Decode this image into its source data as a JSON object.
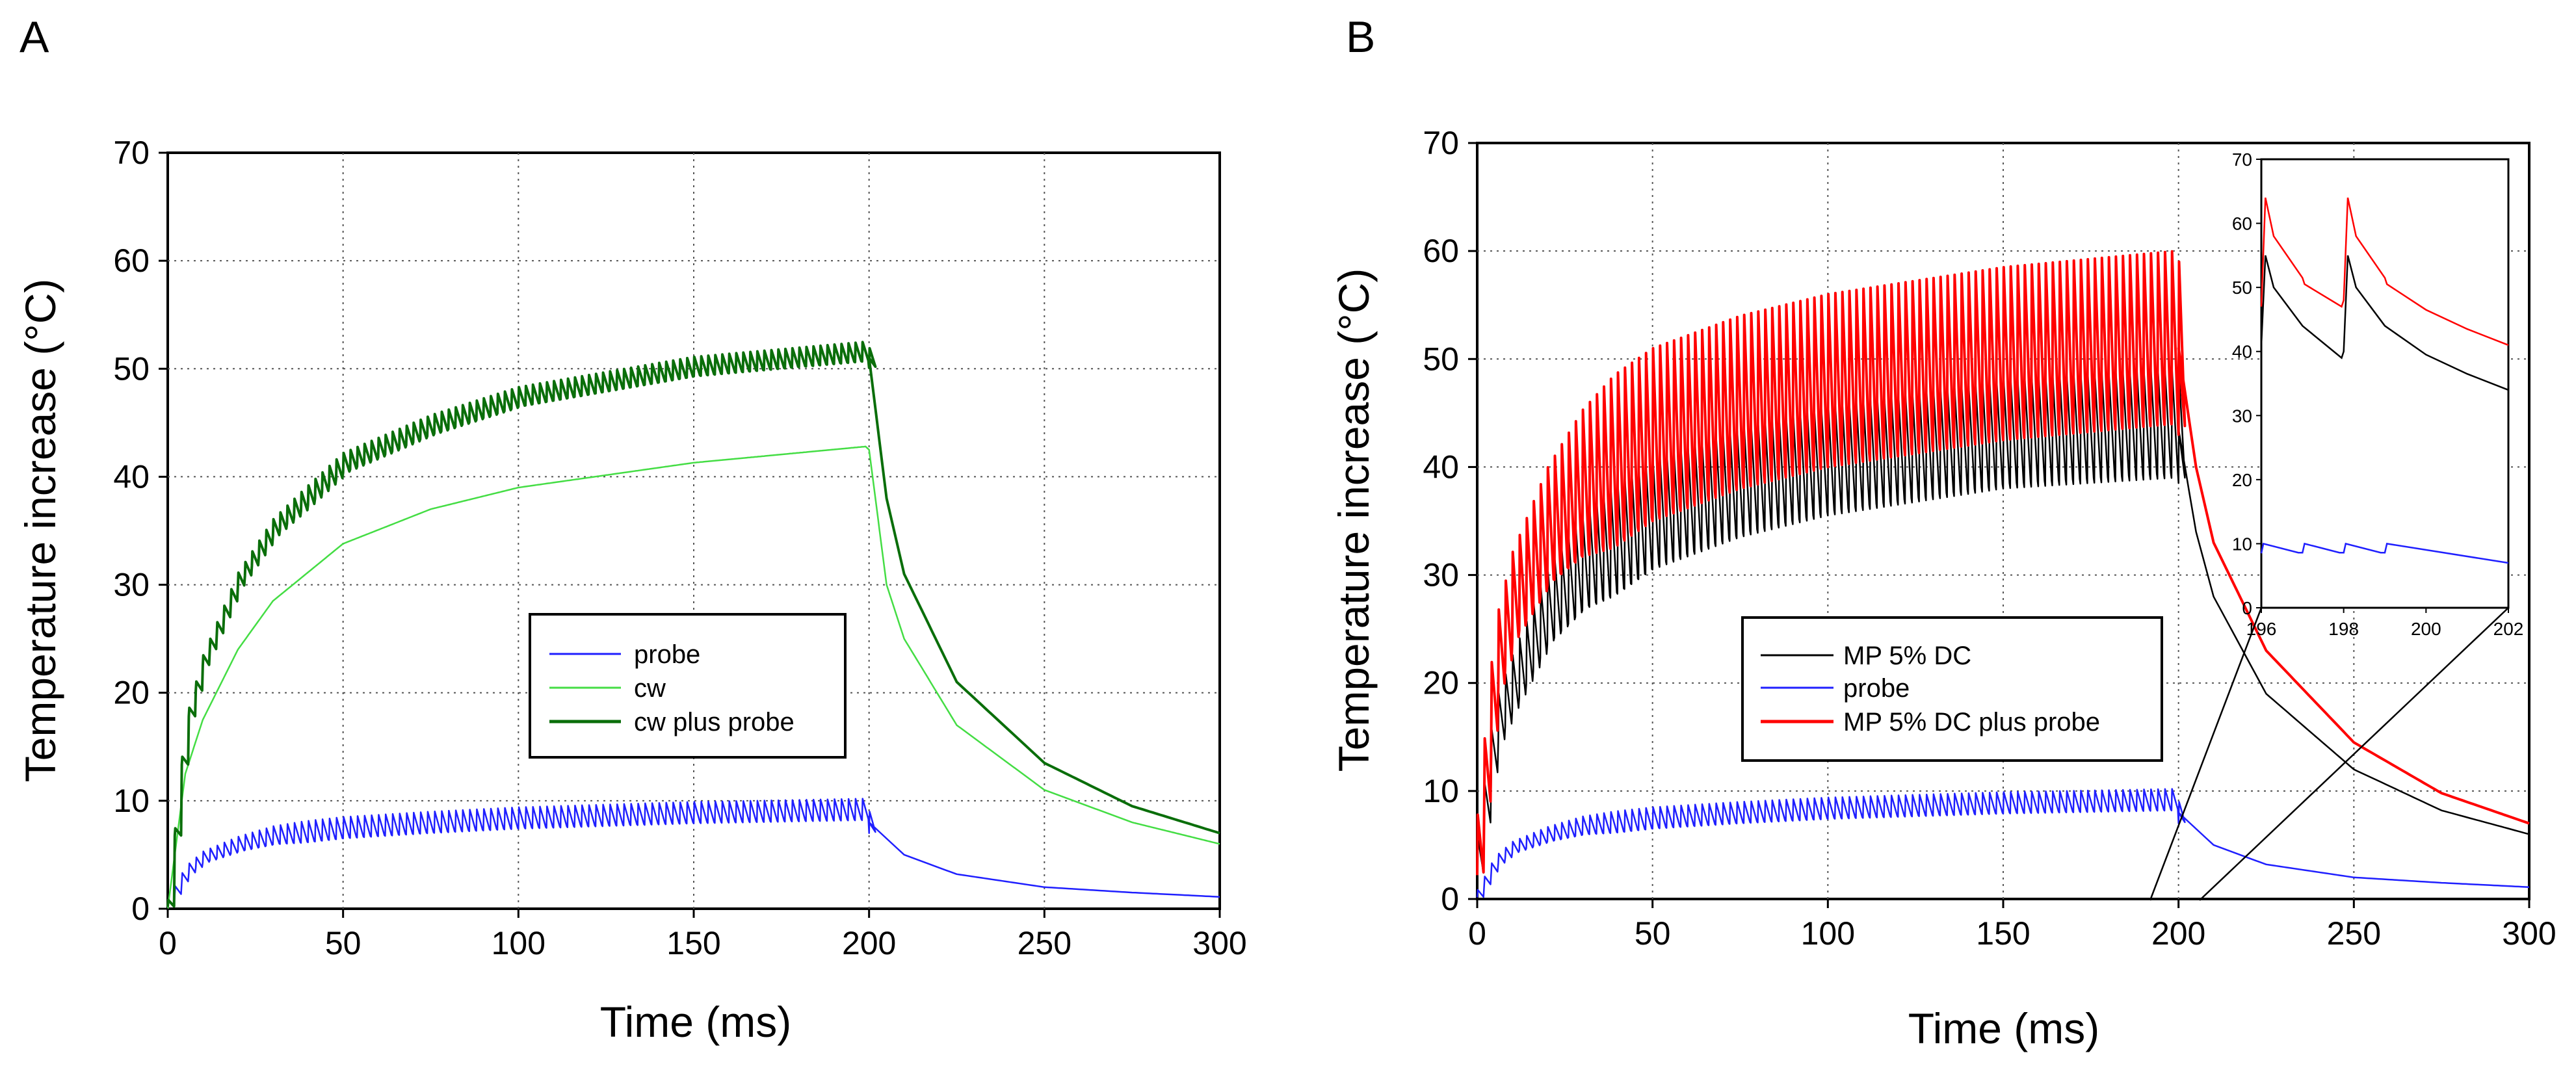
{
  "figure": {
    "panels": [
      "A",
      "B"
    ]
  },
  "chart_data": [
    {
      "id": "A",
      "type": "line",
      "panel_label": "A",
      "title": "",
      "xlabel": "Time (ms)",
      "ylabel": "Temperature increase (°C)",
      "xlim": [
        0,
        300
      ],
      "ylim": [
        0,
        70
      ],
      "xticks": [
        0,
        50,
        100,
        150,
        200,
        250,
        300
      ],
      "yticks": [
        0,
        10,
        20,
        30,
        40,
        50,
        60,
        70
      ],
      "grid": true,
      "legend_position": "center-right",
      "series": [
        {
          "name": "probe",
          "color": "#1f1fff",
          "x": [
            0,
            5,
            10,
            20,
            30,
            50,
            75,
            100,
            150,
            199,
            200,
            210,
            225,
            250,
            275,
            300
          ],
          "values": [
            0.5,
            3.5,
            4.8,
            6.0,
            6.8,
            7.5,
            8.0,
            8.4,
            8.9,
            9.2,
            8.0,
            5.0,
            3.2,
            2.0,
            1.5,
            1.1
          ],
          "oscillation": 2.0
        },
        {
          "name": "cw",
          "color": "#44dd44",
          "x": [
            0,
            5,
            10,
            20,
            30,
            50,
            75,
            100,
            150,
            199,
            200,
            205,
            210,
            225,
            250,
            275,
            300
          ],
          "values": [
            0,
            12.5,
            17.5,
            24,
            28.5,
            33.8,
            37.0,
            39.0,
            41.3,
            42.8,
            42.5,
            30,
            25,
            17,
            11,
            8,
            6
          ],
          "oscillation": 0
        },
        {
          "name": "cw plus probe",
          "color": "#0a6e0a",
          "x": [
            0,
            5,
            10,
            20,
            30,
            50,
            75,
            100,
            150,
            199,
            200,
            205,
            210,
            225,
            250,
            275,
            300
          ],
          "values": [
            0.5,
            17,
            23,
            30.5,
            35.3,
            41.3,
            44.8,
            47.4,
            50.2,
            51.6,
            51.0,
            38,
            31,
            21,
            13.5,
            9.5,
            7.0
          ],
          "oscillation": 1.8
        }
      ]
    },
    {
      "id": "B",
      "type": "line",
      "panel_label": "B",
      "title": "",
      "xlabel": "Time (ms)",
      "ylabel": "Temperature increase (°C)",
      "xlim": [
        0,
        300
      ],
      "ylim": [
        0,
        70
      ],
      "xticks": [
        0,
        50,
        100,
        150,
        200,
        250,
        300
      ],
      "yticks": [
        0,
        10,
        20,
        30,
        40,
        50,
        60,
        70
      ],
      "grid": true,
      "legend_position": "center",
      "series": [
        {
          "name": "MP 5% DC",
          "color": "#000000",
          "x": [
            0,
            5,
            10,
            20,
            30,
            50,
            75,
            100,
            150,
            199,
            200,
            205,
            210,
            225,
            250,
            275,
            300
          ],
          "values": [
            4,
            16,
            20,
            27,
            31,
            35.5,
            38.5,
            40.5,
            43.0,
            44.0,
            43.5,
            34,
            28,
            19,
            12,
            8.2,
            6.0
          ],
          "oscillation": 10
        },
        {
          "name": "probe",
          "color": "#1f1fff",
          "x": [
            0,
            5,
            10,
            20,
            30,
            50,
            75,
            100,
            150,
            199,
            200,
            210,
            225,
            250,
            275,
            300
          ],
          "values": [
            0.5,
            3.5,
            4.8,
            6.0,
            6.8,
            7.5,
            8.0,
            8.4,
            8.9,
            9.2,
            8.0,
            5.0,
            3.2,
            2.0,
            1.5,
            1.1
          ],
          "oscillation": 2.0
        },
        {
          "name": "MP 5% DC plus probe",
          "color": "#ff0000",
          "x": [
            0,
            5,
            10,
            20,
            30,
            50,
            75,
            100,
            150,
            199,
            200,
            205,
            210,
            225,
            250,
            275,
            300
          ],
          "values": [
            5,
            22,
            28,
            34.5,
            38.5,
            43,
            46,
            48,
            50.5,
            52,
            51,
            40,
            33,
            23,
            14.5,
            9.8,
            7.0
          ],
          "oscillation": 16
        }
      ],
      "inset": {
        "xlim": [
          196,
          202
        ],
        "ylim": [
          0,
          70
        ],
        "xticks": [
          196,
          198,
          200,
          202
        ],
        "yticks": [
          0,
          10,
          20,
          30,
          40,
          50,
          60,
          70
        ],
        "series": [
          {
            "name": "MP 5% DC",
            "color": "#000000",
            "x": [
              196,
              196.1,
              196.3,
              197,
              197.95,
              198.0,
              198.1,
              198.3,
              199,
              200,
              201,
              202
            ],
            "values": [
              41,
              55,
              50,
              44,
              39,
              40,
              55,
              50,
              44,
              39.5,
              36.5,
              34
            ]
          },
          {
            "name": "probe",
            "color": "#1f1fff",
            "x": [
              196,
              196.05,
              196.9,
              197,
              197.05,
              197.9,
              198,
              198.05,
              198.9,
              199,
              199.05,
              202
            ],
            "values": [
              8.5,
              10,
              8.6,
              8.6,
              10,
              8.6,
              8.6,
              10,
              8.6,
              8.6,
              10,
              7.0
            ]
          },
          {
            "name": "MP 5% DC plus probe",
            "color": "#ff0000",
            "x": [
              196,
              196.1,
              196.3,
              197,
              197.05,
              197.95,
              198.0,
              198.1,
              198.3,
              199,
              199.05,
              200,
              201,
              202
            ],
            "values": [
              47,
              64,
              58,
              51.5,
              50.5,
              47,
              48,
              64,
              58,
              51.5,
              50.5,
              46.5,
              43.5,
              41
            ]
          }
        ]
      }
    }
  ]
}
